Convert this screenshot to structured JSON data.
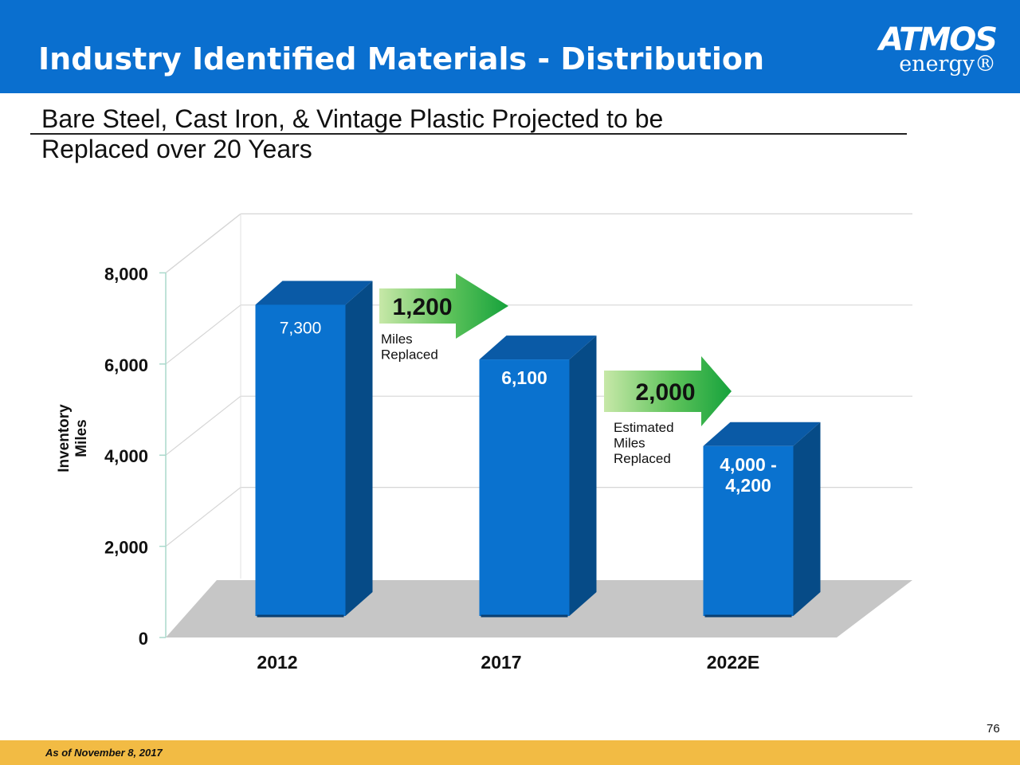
{
  "header": {
    "title": "Industry Identified Materials - Distribution",
    "logo_main": "ATMOS",
    "logo_sub": "energy®"
  },
  "subtitle_line1": "Bare Steel, Cast Iron, & Vintage Plastic Projected to be",
  "subtitle_line2": "Replaced over 20 Years",
  "chart_data": {
    "type": "bar",
    "categories": [
      "2012",
      "2017",
      "2022E"
    ],
    "values": [
      7300,
      6100,
      4200
    ],
    "data_labels": [
      "7,300",
      "6,100",
      "4,000 -\n4,200"
    ],
    "ylabel": "Inventory\nMiles",
    "yticks": [
      "0",
      "2,000",
      "4,000",
      "6,000",
      "8,000"
    ],
    "ylim": [
      0,
      8000
    ],
    "grid": true,
    "annotations": [
      {
        "value": "1,200",
        "text": "Miles\nReplaced"
      },
      {
        "value": "2,000",
        "text": "Estimated\nMiles\nReplaced"
      }
    ]
  },
  "colors": {
    "header_bg": "#0a6fcf",
    "bar_front": "#0a72cf",
    "bar_side": "#064b87",
    "bar_top": "#0a5aa6",
    "arrow_green": "#27b34a",
    "footer_bg": "#f2bb44"
  },
  "footer_note": "As of November 8, 2017",
  "page_number": "76"
}
